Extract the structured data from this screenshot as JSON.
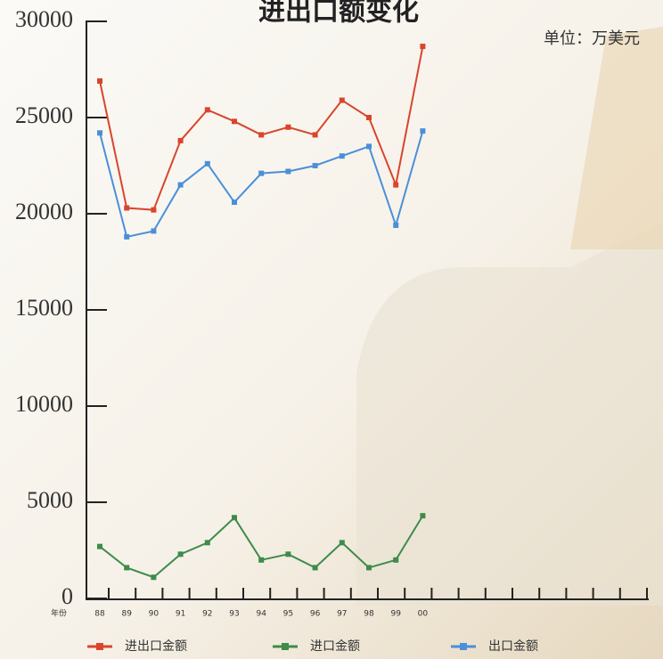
{
  "chart_data": {
    "type": "line",
    "title": "进出口额变化",
    "unit_label": "单位：万美元",
    "x_label": "年份",
    "categories": [
      "88",
      "89",
      "90",
      "91",
      "92",
      "93",
      "94",
      "95",
      "96",
      "97",
      "98",
      "99",
      "00"
    ],
    "series": [
      {
        "name": "进出口金额",
        "color": "#d9452c",
        "values": [
          26900,
          20300,
          20200,
          23800,
          25400,
          24800,
          24100,
          24500,
          24100,
          25900,
          25000,
          21500,
          28700
        ]
      },
      {
        "name": "进口金额",
        "color": "#3d8c4a",
        "values": [
          2700,
          1600,
          1100,
          2300,
          2900,
          4200,
          2000,
          2300,
          1600,
          2900,
          1600,
          2000,
          4300
        ]
      },
      {
        "name": "出口金额",
        "color": "#4a90d9",
        "values": [
          24200,
          18800,
          19100,
          21500,
          22600,
          20600,
          22100,
          22200,
          22500,
          23000,
          23500,
          19400,
          24300
        ]
      }
    ],
    "ylim": [
      0,
      30000
    ],
    "yticks": [
      0,
      5000,
      10000,
      15000,
      20000,
      25000,
      30000
    ],
    "grid": false,
    "legend": "bottom"
  }
}
